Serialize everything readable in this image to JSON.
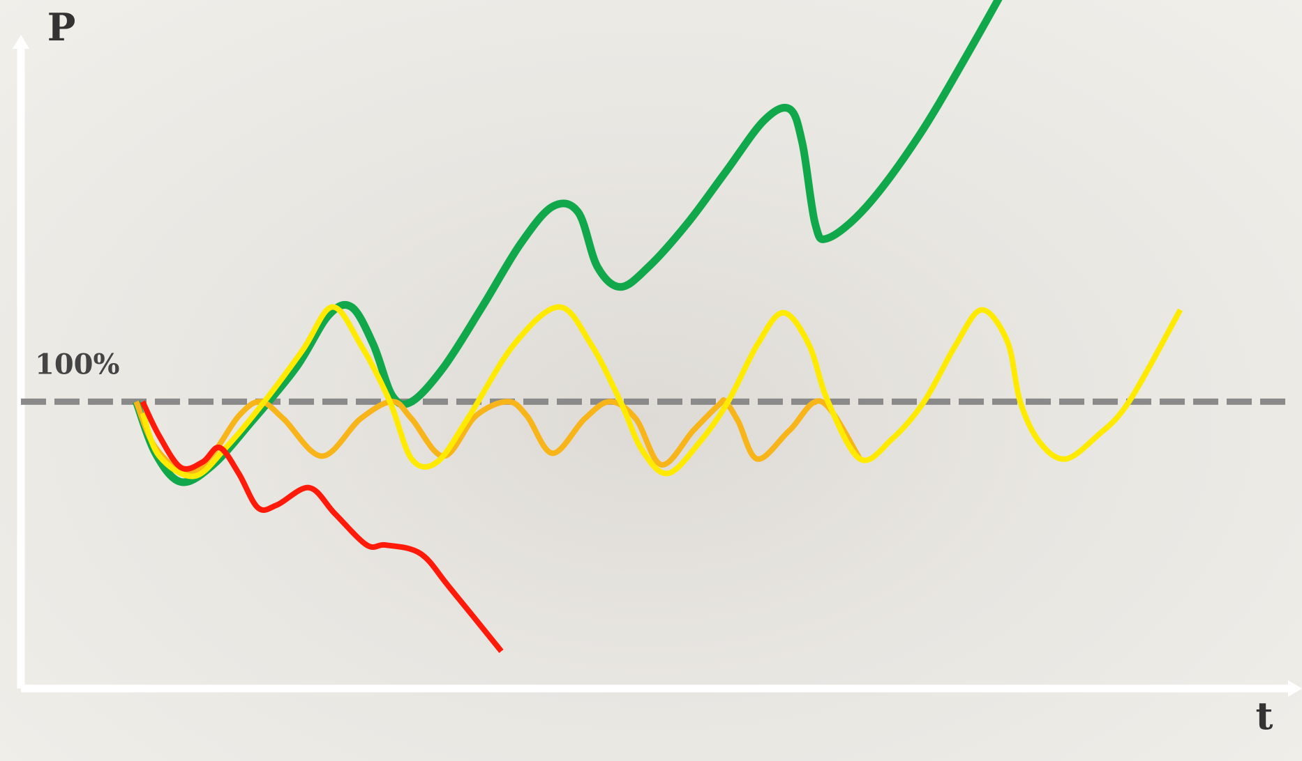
{
  "chart_data": {
    "type": "line",
    "title": "",
    "xlabel": "t",
    "ylabel": "P",
    "grid": false,
    "legend": "none",
    "reference_line": {
      "label": "100%",
      "value": 100,
      "style": "dashed",
      "color": "#8a8a8a"
    },
    "xlim": [
      0,
      100
    ],
    "ylim": [
      0,
      240
    ],
    "series": [
      {
        "color": "#10a84a",
        "width": 11,
        "points": [
          [
            9.0,
            100
          ],
          [
            10.5,
            82
          ],
          [
            12.5,
            72
          ],
          [
            15.0,
            78
          ],
          [
            18.0,
            93
          ],
          [
            21.5,
            112
          ],
          [
            24.0,
            130
          ],
          [
            25.8,
            133
          ],
          [
            27.5,
            120
          ],
          [
            29.0,
            102
          ],
          [
            30.5,
            100
          ],
          [
            33.0,
            112
          ],
          [
            36.0,
            133
          ],
          [
            39.0,
            155
          ],
          [
            41.5,
            168
          ],
          [
            43.5,
            166
          ],
          [
            45.0,
            147
          ],
          [
            46.8,
            140
          ],
          [
            49.0,
            147
          ],
          [
            52.0,
            162
          ],
          [
            55.0,
            180
          ],
          [
            58.0,
            198
          ],
          [
            60.0,
            202
          ],
          [
            61.0,
            190
          ],
          [
            62.0,
            162
          ],
          [
            63.0,
            157
          ],
          [
            66.0,
            168
          ],
          [
            70.0,
            192
          ],
          [
            74.0,
            222
          ],
          [
            79.0,
            262
          ]
        ]
      },
      {
        "color": "#f7b51a",
        "width": 8,
        "points": [
          [
            9.0,
            100
          ],
          [
            10.5,
            84
          ],
          [
            13.0,
            75
          ],
          [
            15.0,
            82
          ],
          [
            17.0,
            95
          ],
          [
            18.7,
            100
          ],
          [
            20.5,
            94
          ],
          [
            23.5,
            81
          ],
          [
            26.5,
            94
          ],
          [
            29.0,
            100
          ],
          [
            30.5,
            94
          ],
          [
            33.0,
            81
          ],
          [
            35.5,
            95
          ],
          [
            38.0,
            100
          ],
          [
            39.5,
            95
          ],
          [
            41.5,
            82
          ],
          [
            44.0,
            94
          ],
          [
            46.0,
            100
          ],
          [
            48.0,
            94
          ],
          [
            50.0,
            78
          ],
          [
            52.5,
            90
          ],
          [
            54.5,
            99
          ],
          [
            55.0,
            100
          ],
          [
            56.0,
            93
          ],
          [
            57.5,
            80
          ],
          [
            60.0,
            90
          ],
          [
            62.5,
            100
          ],
          [
            65.5,
            80
          ]
        ]
      },
      {
        "color": "#ffea00",
        "width": 8,
        "points": [
          [
            9.5,
            96
          ],
          [
            10.8,
            81
          ],
          [
            13.5,
            74
          ],
          [
            16.0,
            84
          ],
          [
            19.0,
            100
          ],
          [
            22.0,
            118
          ],
          [
            24.3,
            133
          ],
          [
            26.5,
            120
          ],
          [
            28.8,
            100
          ],
          [
            30.5,
            80
          ],
          [
            32.5,
            79
          ],
          [
            35.0,
            95
          ],
          [
            38.5,
            120
          ],
          [
            42.0,
            133
          ],
          [
            44.5,
            120
          ],
          [
            46.8,
            100
          ],
          [
            48.5,
            83
          ],
          [
            50.5,
            75
          ],
          [
            53.0,
            86
          ],
          [
            55.2,
            100
          ],
          [
            57.5,
            120
          ],
          [
            59.5,
            131
          ],
          [
            61.5,
            120
          ],
          [
            63.0,
            100
          ],
          [
            65.5,
            80
          ],
          [
            68.0,
            87
          ],
          [
            70.5,
            100
          ],
          [
            73.0,
            120
          ],
          [
            75.0,
            132
          ],
          [
            77.0,
            121
          ],
          [
            78.0,
            100
          ],
          [
            79.5,
            86
          ],
          [
            81.5,
            80
          ],
          [
            84.0,
            88
          ],
          [
            86.5,
            100
          ],
          [
            90.5,
            132
          ]
        ]
      },
      {
        "color": "#ff1a0a",
        "width": 8,
        "points": [
          [
            9.5,
            100
          ],
          [
            10.8,
            88
          ],
          [
            12.5,
            77
          ],
          [
            14.2,
            79
          ],
          [
            15.5,
            84
          ],
          [
            17.0,
            75
          ],
          [
            18.5,
            63
          ],
          [
            20.0,
            64
          ],
          [
            22.5,
            70
          ],
          [
            24.5,
            61
          ],
          [
            27.0,
            50
          ],
          [
            28.5,
            50
          ],
          [
            31.2,
            47
          ],
          [
            33.5,
            35
          ],
          [
            37.5,
            13
          ]
        ]
      }
    ]
  }
}
